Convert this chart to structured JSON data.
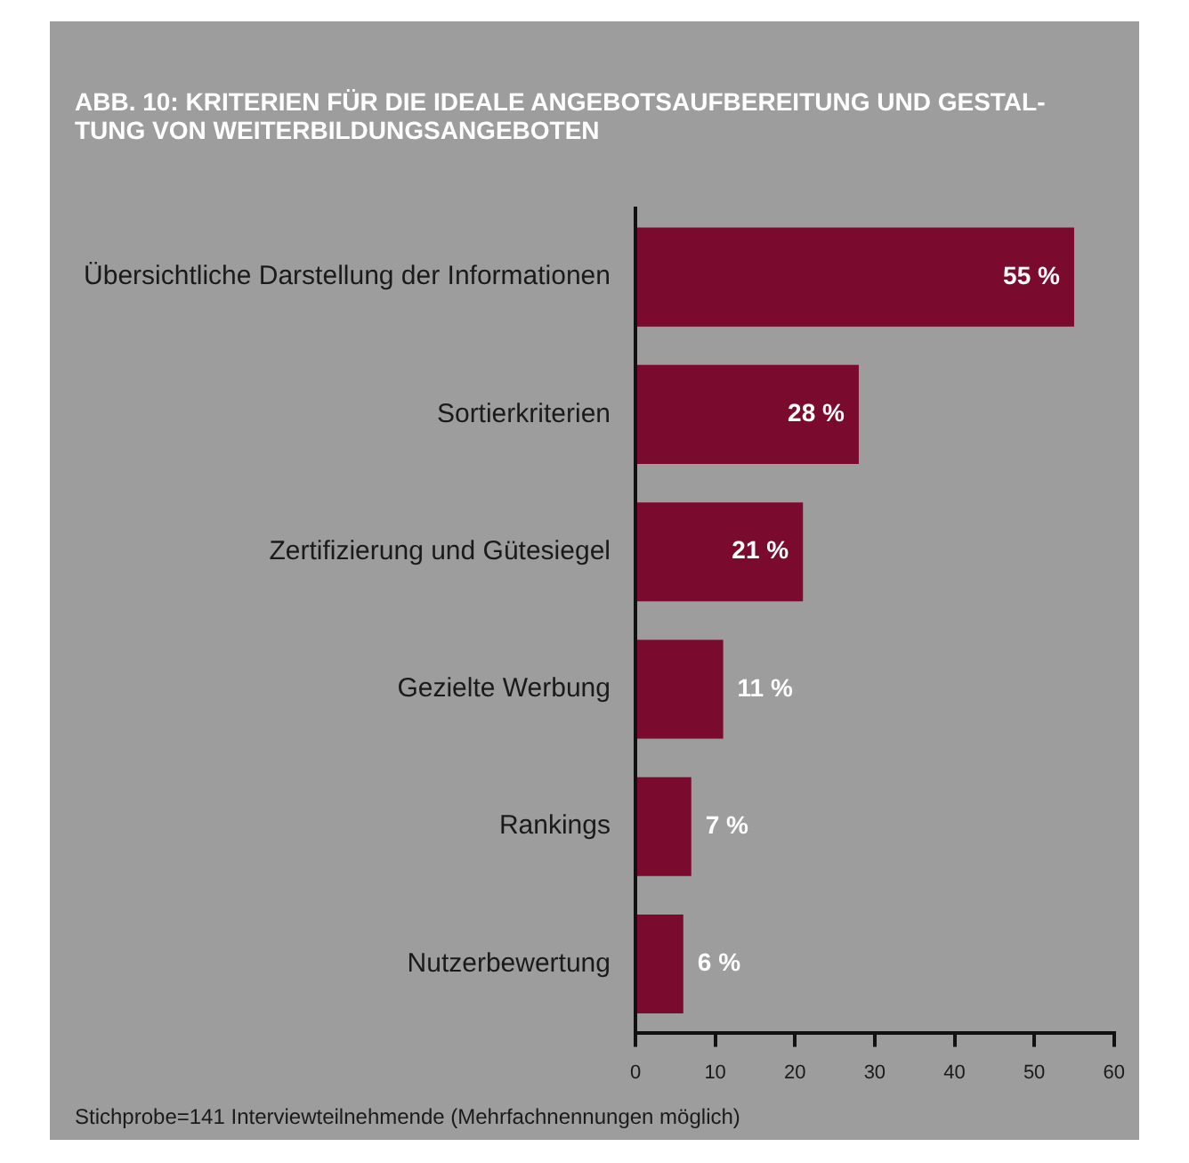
{
  "chart_data": {
    "type": "bar",
    "orientation": "horizontal",
    "title": "ABB. 10: KRITERIEN FÜR DIE IDEALE ANGEBOTSAUFBEREITUNG UND GESTAL-TUNG VON WEITERBILDUNGSANGEBOTEN",
    "categories": [
      "Übersichtliche Darstellung der Informationen",
      "Sortierkriterien",
      "Zertifizierung und Gütesiegel",
      "Gezielte Werbung",
      "Rankings",
      "Nutzerbewertung"
    ],
    "values": [
      55,
      28,
      21,
      11,
      7,
      6
    ],
    "value_labels": [
      "55 %",
      "28 %",
      "21 %",
      "11 %",
      "7 %",
      "6 %"
    ],
    "color": "#7a0a2e",
    "xlim": [
      0,
      60
    ],
    "xticks": [
      0,
      10,
      20,
      30,
      40,
      50,
      60
    ],
    "annotations": [
      "Stichprobe=141 Interviewteilnehmende (Mehrfachnennungen möglich)"
    ]
  }
}
